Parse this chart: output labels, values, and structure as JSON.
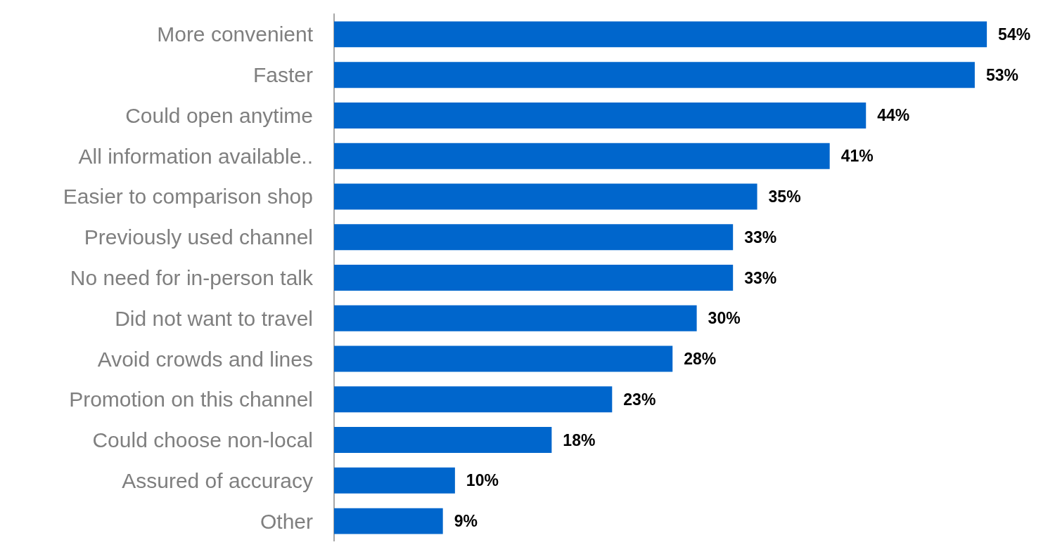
{
  "chart_data": {
    "type": "bar",
    "orientation": "horizontal",
    "categories": [
      "More convenient",
      "Faster",
      "Could open anytime",
      "All information available..",
      "Easier to comparison shop",
      "Previously used channel",
      "No need for in-person talk",
      "Did not want to travel",
      "Avoid crowds and lines",
      "Promotion on this channel",
      "Could choose non-local",
      "Assured of accuracy",
      "Other"
    ],
    "values": [
      54,
      53,
      44,
      41,
      35,
      33,
      33,
      30,
      28,
      23,
      18,
      10,
      9
    ],
    "value_labels": [
      "54%",
      "53%",
      "44%",
      "41%",
      "35%",
      "33%",
      "33%",
      "30%",
      "28%",
      "23%",
      "18%",
      "10%",
      "9%"
    ],
    "color": "#0066cc"
  }
}
